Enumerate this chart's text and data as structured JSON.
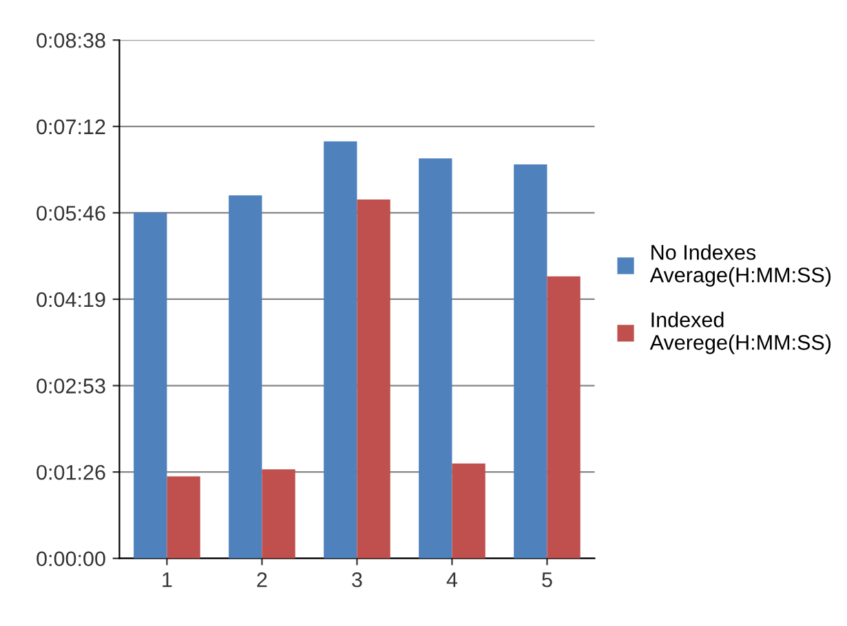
{
  "chart_data": {
    "type": "bar",
    "categories": [
      "1",
      "2",
      "3",
      "4",
      "5"
    ],
    "series": [
      {
        "name": "No Indexes Average(H:MM:SS)",
        "color": "#4f81bd",
        "values": [
          346,
          363,
          417,
          400,
          394
        ]
      },
      {
        "name": "Indexed Averege(H:MM:SS)",
        "color": "#c0504d",
        "values": [
          82,
          89,
          359,
          95,
          282
        ]
      }
    ],
    "ylim": [
      0,
      518.4
    ],
    "yticks": [
      {
        "value": 0,
        "label": "0:00:00"
      },
      {
        "value": 86.4,
        "label": "0:01:26"
      },
      {
        "value": 172.8,
        "label": "0:02:53"
      },
      {
        "value": 259.2,
        "label": "0:04:19"
      },
      {
        "value": 345.6,
        "label": "0:05:46"
      },
      {
        "value": 432,
        "label": "0:07:12"
      },
      {
        "value": 518.4,
        "label": "0:08:38"
      }
    ],
    "grid": "y",
    "legend": "right"
  }
}
